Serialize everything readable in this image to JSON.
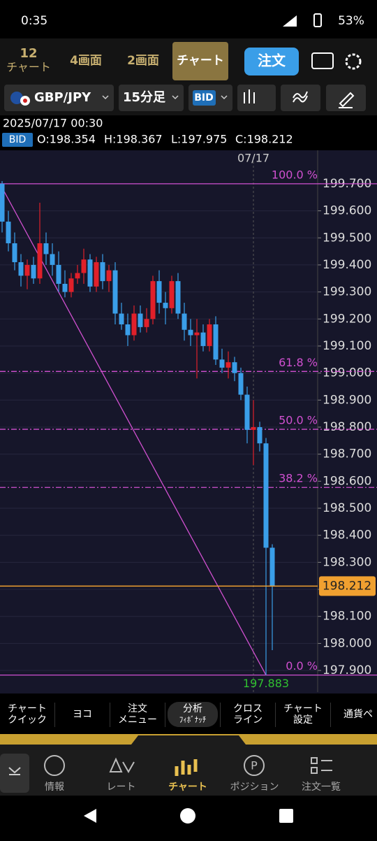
{
  "status_bar": {
    "time": "0:35",
    "battery": "53%"
  },
  "top_tabs": {
    "count": "12",
    "count_label": "チャート",
    "tabs": [
      "4画面",
      "2画面",
      "チャート"
    ],
    "order_button": "注文"
  },
  "toolbar": {
    "symbol": "GBP/JPY",
    "timeframe": "15分足",
    "price_type": "BID"
  },
  "info": {
    "datetime": "2025/07/17 00:30",
    "badge": "BID",
    "ohlc": [
      "O:198.354",
      "H:198.367",
      "L:197.975",
      "C:198.212"
    ]
  },
  "chart_data": {
    "type": "candlestick",
    "date_label": "07/17",
    "ylim": [
      197.82,
      199.798
    ],
    "yticks": [
      {
        "value": 199.7,
        "label": "199.700"
      },
      {
        "value": 199.6,
        "label": "199.600"
      },
      {
        "value": 199.5,
        "label": "199.500"
      },
      {
        "value": 199.4,
        "label": "199.400"
      },
      {
        "value": 199.3,
        "label": "199.300"
      },
      {
        "value": 199.2,
        "label": "199.200"
      },
      {
        "value": 199.1,
        "label": "199.100"
      },
      {
        "value": 199.0,
        "label": "199.000"
      },
      {
        "value": 198.9,
        "label": "198.900"
      },
      {
        "value": 198.8,
        "label": "198.800"
      },
      {
        "value": 198.7,
        "label": "198.700"
      },
      {
        "value": 198.6,
        "label": "198.600"
      },
      {
        "value": 198.5,
        "label": "198.500"
      },
      {
        "value": 198.4,
        "label": "198.400"
      },
      {
        "value": 198.3,
        "label": "198.300"
      },
      {
        "value": 198.2,
        "label": "198.200"
      },
      {
        "value": 198.1,
        "label": "198.100"
      },
      {
        "value": 198.0,
        "label": "198.000"
      },
      {
        "value": 197.9,
        "label": "197.900"
      }
    ],
    "grid": true,
    "up_color": "#e0202a",
    "down_color": "#3a9ee8",
    "fib_color": "#d050d0",
    "fib_levels": [
      {
        "label": "100.0 %",
        "value": 199.7
      },
      {
        "label": "61.8 %",
        "value": 199.006
      },
      {
        "label": "50.0 %",
        "value": 198.792
      },
      {
        "label": "38.2 %",
        "value": 198.577
      },
      {
        "label": "0.0 %",
        "value": 197.883
      }
    ],
    "current_price": 198.212,
    "current_color": "#f0a030",
    "low_price": 197.883,
    "candles": [
      [
        199.7,
        199.71,
        199.52,
        199.56
      ],
      [
        199.56,
        199.6,
        199.45,
        199.48
      ],
      [
        199.48,
        199.52,
        199.38,
        199.41
      ],
      [
        199.41,
        199.44,
        199.32,
        199.36
      ],
      [
        199.36,
        199.42,
        199.31,
        199.4
      ],
      [
        199.4,
        199.43,
        199.33,
        199.35
      ],
      [
        199.35,
        199.63,
        199.33,
        199.48
      ],
      [
        199.48,
        199.52,
        199.4,
        199.44
      ],
      [
        199.44,
        199.48,
        199.36,
        199.4
      ],
      [
        199.4,
        199.45,
        199.3,
        199.33
      ],
      [
        199.33,
        199.38,
        199.28,
        199.3
      ],
      [
        199.3,
        199.37,
        199.28,
        199.35
      ],
      [
        199.35,
        199.4,
        199.33,
        199.37
      ],
      [
        199.37,
        199.46,
        199.33,
        199.42
      ],
      [
        199.42,
        199.44,
        199.3,
        199.32
      ],
      [
        199.32,
        199.43,
        199.3,
        199.41
      ],
      [
        199.41,
        199.44,
        199.31,
        199.34
      ],
      [
        199.34,
        199.4,
        199.3,
        199.38
      ],
      [
        199.38,
        199.41,
        199.18,
        199.22
      ],
      [
        199.22,
        199.26,
        199.16,
        199.18
      ],
      [
        199.18,
        199.22,
        199.1,
        199.14
      ],
      [
        199.14,
        199.25,
        199.12,
        199.22
      ],
      [
        199.22,
        199.25,
        199.15,
        199.17
      ],
      [
        199.17,
        199.24,
        199.15,
        199.2
      ],
      [
        199.2,
        199.36,
        199.18,
        199.34
      ],
      [
        199.34,
        199.38,
        199.22,
        199.26
      ],
      [
        199.26,
        199.3,
        199.18,
        199.24
      ],
      [
        199.24,
        199.36,
        199.22,
        199.34
      ],
      [
        199.34,
        199.37,
        199.2,
        199.22
      ],
      [
        199.22,
        199.26,
        199.12,
        199.16
      ],
      [
        199.16,
        199.2,
        199.1,
        199.14
      ],
      [
        199.14,
        199.2,
        198.98,
        199.15
      ],
      [
        199.15,
        199.18,
        199.08,
        199.1
      ],
      [
        199.1,
        199.2,
        199.08,
        199.18
      ],
      [
        199.18,
        199.21,
        199.03,
        199.05
      ],
      [
        199.05,
        199.09,
        199.0,
        199.02
      ],
      [
        199.02,
        199.08,
        198.98,
        199.04
      ],
      [
        199.04,
        199.06,
        198.97,
        199.0
      ],
      [
        199.0,
        199.02,
        198.9,
        198.92
      ],
      [
        198.92,
        198.95,
        198.74,
        198.79
      ],
      [
        198.79,
        198.9,
        198.66,
        198.8
      ],
      [
        198.8,
        198.82,
        198.71,
        198.74
      ],
      [
        198.74,
        198.76,
        197.883,
        198.354
      ],
      [
        198.354,
        198.367,
        197.975,
        198.212
      ]
    ]
  },
  "bottom_menu": [
    [
      "チャート",
      "クイック"
    ],
    [
      "ヨコ"
    ],
    [
      "注文",
      "メニュー"
    ],
    [
      "分析",
      "ﾌｨﾎﾞﾅｯﾁ"
    ],
    [
      "クロス",
      "ライン"
    ],
    [
      "チャート",
      "設定"
    ],
    [
      "通貨ペ"
    ]
  ],
  "nav_tabs": [
    "情報",
    "レート",
    "チャート",
    "ポジション",
    "注文一覧"
  ]
}
